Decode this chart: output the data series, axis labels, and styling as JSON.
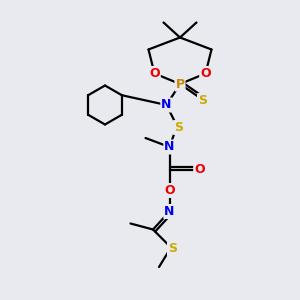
{
  "bg_color": "#e8eaf0",
  "atom_colors": {
    "C": "#000000",
    "N": "#0000ee",
    "O": "#ee0000",
    "S": "#ccaa00",
    "P": "#cc8800"
  },
  "bond_color": "#000000",
  "bond_width": 1.6,
  "figsize": [
    3.0,
    3.0
  ],
  "dpi": 100,
  "xlim": [
    0,
    10
  ],
  "ylim": [
    0,
    10
  ]
}
